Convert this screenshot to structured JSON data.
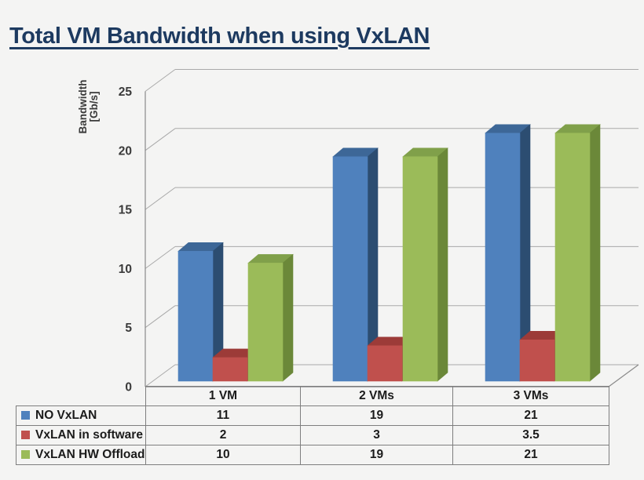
{
  "title": "Total VM Bandwidth when using VxLAN",
  "colors": {
    "background": "#f4f4f3",
    "title_text": "#1d3a60",
    "grid": "#a9a9a9",
    "axis": "#8a8a8a",
    "tick_text": "#3a3a3a",
    "table_border": "#7e7e7e",
    "table_text": "#1b1b1b"
  },
  "chart_data": {
    "type": "bar",
    "variant": "3d-clustered-column",
    "title": "Total VM Bandwidth when using VxLAN",
    "categories": [
      "1 VM",
      "2 VMs",
      "3 VMs"
    ],
    "series": [
      {
        "name": "NO VxLAN",
        "values": [
          11,
          19,
          21
        ],
        "color": "#4f81bd",
        "top_color": "#3d6797",
        "side_color": "#2c4d71"
      },
      {
        "name": "VxLAN in software",
        "values": [
          2,
          3,
          3.5
        ],
        "color": "#c0504d",
        "top_color": "#9c3b38",
        "side_color": "#8f3734"
      },
      {
        "name": "VxLAN HW Offload",
        "values": [
          10,
          19,
          21
        ],
        "color": "#9bbb59",
        "top_color": "#80a04a",
        "side_color": "#6b8839"
      }
    ],
    "xlabel": "",
    "ylabel": "Bandwidth [Gb/s]",
    "ylabel_lines": [
      "Bandwidth",
      "[Gb/s]"
    ],
    "yticks": [
      0,
      5,
      10,
      15,
      20,
      25
    ],
    "ylim": [
      0,
      25
    ],
    "grid": true,
    "legend_position": "table-left"
  }
}
